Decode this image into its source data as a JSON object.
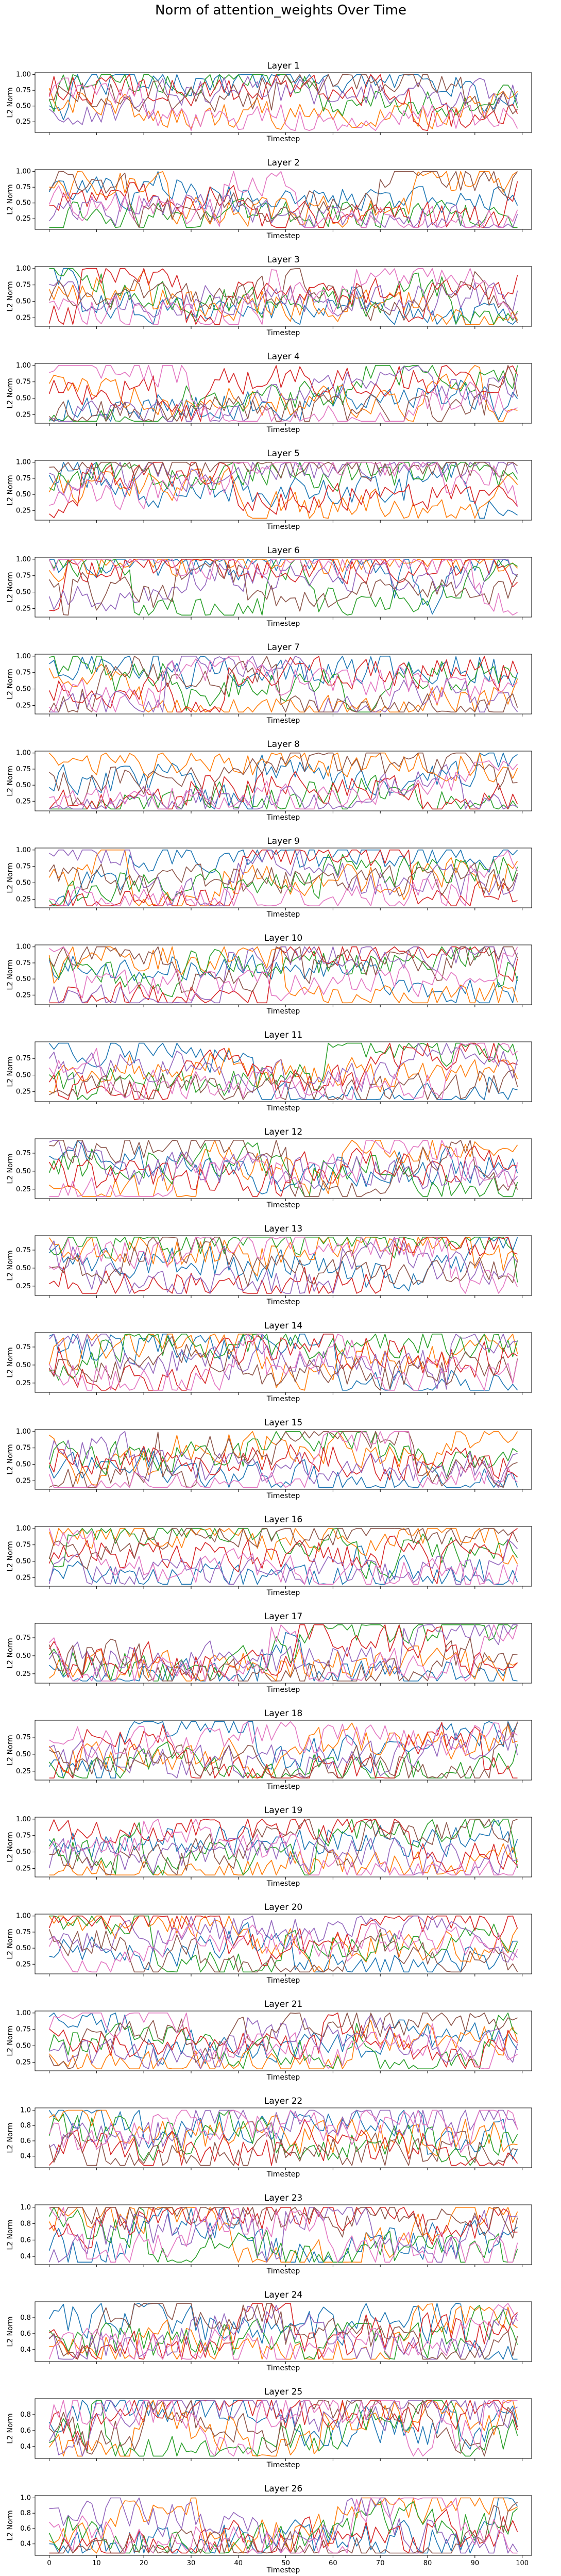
{
  "figure": {
    "title": "Norm of attention_weights Over Time"
  },
  "palette": [
    "#1f77b4",
    "#ff7f0e",
    "#2ca02c",
    "#d62728",
    "#9467bd",
    "#8c564b",
    "#e377c2"
  ],
  "chart_data": [
    {
      "type": "line",
      "title": "Layer 1",
      "xlabel": "Timestep",
      "ylabel": "L2 Norm",
      "xlim": [
        -3,
        102
      ],
      "ylim": [
        0.08,
        1.03
      ],
      "yticks": [
        0.25,
        0.5,
        0.75,
        1.0
      ],
      "n_series": 7,
      "seed": 1
    },
    {
      "type": "line",
      "title": "Layer 2",
      "xlabel": "Timestep",
      "ylabel": "L2 Norm",
      "xlim": [
        -3,
        102
      ],
      "ylim": [
        0.08,
        1.03
      ],
      "yticks": [
        0.25,
        0.5,
        0.75,
        1.0
      ],
      "n_series": 7,
      "seed": 2
    },
    {
      "type": "line",
      "title": "Layer 3",
      "xlabel": "Timestep",
      "ylabel": "L2 Norm",
      "xlim": [
        -3,
        102
      ],
      "ylim": [
        0.12,
        1.03
      ],
      "yticks": [
        0.25,
        0.5,
        0.75,
        1.0
      ],
      "n_series": 7,
      "seed": 3
    },
    {
      "type": "line",
      "title": "Layer 4",
      "xlabel": "Timestep",
      "ylabel": "L2 Norm",
      "xlim": [
        -3,
        102
      ],
      "ylim": [
        0.12,
        1.03
      ],
      "yticks": [
        0.25,
        0.5,
        0.75,
        1.0
      ],
      "n_series": 7,
      "seed": 4
    },
    {
      "type": "line",
      "title": "Layer 5",
      "xlabel": "Timestep",
      "ylabel": "L2 Norm",
      "xlim": [
        -3,
        102
      ],
      "ylim": [
        0.1,
        1.03
      ],
      "yticks": [
        0.25,
        0.5,
        0.75,
        1.0
      ],
      "n_series": 7,
      "seed": 5
    },
    {
      "type": "line",
      "title": "Layer 6",
      "xlabel": "Timestep",
      "ylabel": "L2 Norm",
      "xlim": [
        -3,
        102
      ],
      "ylim": [
        0.12,
        1.03
      ],
      "yticks": [
        0.25,
        0.5,
        0.75,
        1.0
      ],
      "n_series": 7,
      "seed": 6
    },
    {
      "type": "line",
      "title": "Layer 7",
      "xlabel": "Timestep",
      "ylabel": "L2 Norm",
      "xlim": [
        -3,
        102
      ],
      "ylim": [
        0.12,
        1.03
      ],
      "yticks": [
        0.25,
        0.5,
        0.75,
        1.0
      ],
      "n_series": 7,
      "seed": 7
    },
    {
      "type": "line",
      "title": "Layer 8",
      "xlabel": "Timestep",
      "ylabel": "L2 Norm",
      "xlim": [
        -3,
        102
      ],
      "ylim": [
        0.1,
        1.03
      ],
      "yticks": [
        0.25,
        0.5,
        0.75,
        1.0
      ],
      "n_series": 7,
      "seed": 8
    },
    {
      "type": "line",
      "title": "Layer 9",
      "xlabel": "Timestep",
      "ylabel": "L2 Norm",
      "xlim": [
        -3,
        102
      ],
      "ylim": [
        0.12,
        1.03
      ],
      "yticks": [
        0.25,
        0.5,
        0.75,
        1.0
      ],
      "n_series": 7,
      "seed": 9
    },
    {
      "type": "line",
      "title": "Layer 10",
      "xlabel": "Timestep",
      "ylabel": "L2 Norm",
      "xlim": [
        -3,
        102
      ],
      "ylim": [
        0.1,
        1.03
      ],
      "yticks": [
        0.25,
        0.5,
        0.75,
        1.0
      ],
      "n_series": 7,
      "seed": 10
    },
    {
      "type": "line",
      "title": "Layer 11",
      "xlabel": "Timestep",
      "ylabel": "L2 Norm",
      "xlim": [
        -3,
        102
      ],
      "ylim": [
        0.1,
        1.0
      ],
      "yticks": [
        0.25,
        0.5,
        0.75
      ],
      "n_series": 7,
      "seed": 11
    },
    {
      "type": "line",
      "title": "Layer 12",
      "xlabel": "Timestep",
      "ylabel": "L2 Norm",
      "xlim": [
        -3,
        102
      ],
      "ylim": [
        0.12,
        0.95
      ],
      "yticks": [
        0.25,
        0.5,
        0.75
      ],
      "n_series": 7,
      "seed": 12
    },
    {
      "type": "line",
      "title": "Layer 13",
      "xlabel": "Timestep",
      "ylabel": "L2 Norm",
      "xlim": [
        -3,
        102
      ],
      "ylim": [
        0.12,
        0.95
      ],
      "yticks": [
        0.25,
        0.5,
        0.75
      ],
      "n_series": 7,
      "seed": 13
    },
    {
      "type": "line",
      "title": "Layer 14",
      "xlabel": "Timestep",
      "ylabel": "L2 Norm",
      "xlim": [
        -3,
        102
      ],
      "ylim": [
        0.12,
        0.95
      ],
      "yticks": [
        0.25,
        0.5,
        0.75
      ],
      "n_series": 7,
      "seed": 14
    },
    {
      "type": "line",
      "title": "Layer 15",
      "xlabel": "Timestep",
      "ylabel": "L2 Norm",
      "xlim": [
        -3,
        102
      ],
      "ylim": [
        0.12,
        1.03
      ],
      "yticks": [
        0.25,
        0.5,
        0.75,
        1.0
      ],
      "n_series": 7,
      "seed": 15
    },
    {
      "type": "line",
      "title": "Layer 16",
      "xlabel": "Timestep",
      "ylabel": "L2 Norm",
      "xlim": [
        -3,
        102
      ],
      "ylim": [
        0.12,
        1.03
      ],
      "yticks": [
        0.25,
        0.5,
        0.75,
        1.0
      ],
      "n_series": 7,
      "seed": 16
    },
    {
      "type": "line",
      "title": "Layer 17",
      "xlabel": "Timestep",
      "ylabel": "L2 Norm",
      "xlim": [
        -3,
        102
      ],
      "ylim": [
        0.12,
        0.95
      ],
      "yticks": [
        0.25,
        0.5,
        0.75
      ],
      "n_series": 7,
      "seed": 17
    },
    {
      "type": "line",
      "title": "Layer 18",
      "xlabel": "Timestep",
      "ylabel": "L2 Norm",
      "xlim": [
        -3,
        102
      ],
      "ylim": [
        0.12,
        1.0
      ],
      "yticks": [
        0.25,
        0.5,
        0.75
      ],
      "n_series": 7,
      "seed": 18
    },
    {
      "type": "line",
      "title": "Layer 19",
      "xlabel": "Timestep",
      "ylabel": "L2 Norm",
      "xlim": [
        -3,
        102
      ],
      "ylim": [
        0.12,
        1.03
      ],
      "yticks": [
        0.25,
        0.5,
        0.75,
        1.0
      ],
      "n_series": 7,
      "seed": 19
    },
    {
      "type": "line",
      "title": "Layer 20",
      "xlabel": "Timestep",
      "ylabel": "L2 Norm",
      "xlim": [
        -3,
        102
      ],
      "ylim": [
        0.1,
        1.03
      ],
      "yticks": [
        0.25,
        0.5,
        0.75,
        1.0
      ],
      "n_series": 7,
      "seed": 20
    },
    {
      "type": "line",
      "title": "Layer 21",
      "xlabel": "Timestep",
      "ylabel": "L2 Norm",
      "xlim": [
        -3,
        102
      ],
      "ylim": [
        0.12,
        1.03
      ],
      "yticks": [
        0.25,
        0.5,
        0.75,
        1.0
      ],
      "n_series": 7,
      "seed": 21
    },
    {
      "type": "line",
      "title": "Layer 22",
      "xlabel": "Timestep",
      "ylabel": "L2 Norm",
      "xlim": [
        -3,
        102
      ],
      "ylim": [
        0.25,
        1.03
      ],
      "yticks": [
        0.4,
        0.6,
        0.8,
        1.0
      ],
      "n_series": 7,
      "seed": 22
    },
    {
      "type": "line",
      "title": "Layer 23",
      "xlabel": "Timestep",
      "ylabel": "L2 Norm",
      "xlim": [
        -3,
        102
      ],
      "ylim": [
        0.3,
        1.03
      ],
      "yticks": [
        0.4,
        0.6,
        0.8,
        1.0
      ],
      "n_series": 7,
      "seed": 23
    },
    {
      "type": "line",
      "title": "Layer 24",
      "xlabel": "Timestep",
      "ylabel": "L2 Norm",
      "xlim": [
        -3,
        102
      ],
      "ylim": [
        0.25,
        1.0
      ],
      "yticks": [
        0.4,
        0.6,
        0.8
      ],
      "n_series": 7,
      "seed": 24
    },
    {
      "type": "line",
      "title": "Layer 25",
      "xlabel": "Timestep",
      "ylabel": "L2 Norm",
      "xlim": [
        -3,
        102
      ],
      "ylim": [
        0.25,
        1.0
      ],
      "yticks": [
        0.4,
        0.6,
        0.8
      ],
      "n_series": 7,
      "seed": 25
    },
    {
      "type": "line",
      "title": "Layer 26",
      "xlabel": "Timestep",
      "ylabel": "L2 Norm",
      "xlim": [
        -3,
        102
      ],
      "ylim": [
        0.25,
        1.03
      ],
      "yticks": [
        0.4,
        0.6,
        0.8,
        1.0
      ],
      "xticks": [
        0,
        10,
        20,
        30,
        40,
        50,
        60,
        70,
        80,
        90,
        100
      ],
      "n_series": 7,
      "seed": 26
    }
  ]
}
